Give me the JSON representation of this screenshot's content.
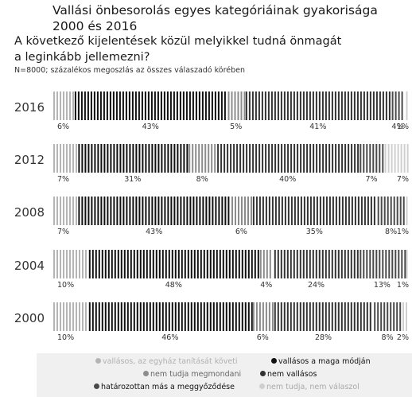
{
  "header": {
    "title_line1": "Vallási önbesorolás egyes kategóriáinak gyakorisága",
    "title_line2": "2000 és 2016",
    "question_line1": "A következő kijelentések közül melyikkel tudná önmagát",
    "question_line2": "a leginkább jellemezni?",
    "note": "N=8000; százalékos megoszlás az összes válaszadó körében"
  },
  "chart_data": {
    "type": "bar",
    "stacked": true,
    "orientation": "horizontal",
    "unit": "%",
    "categories": [
      "2016",
      "2012",
      "2008",
      "2004",
      "2000"
    ],
    "series": [
      {
        "name": "vallásos, az egyház tanítását követi",
        "values": [
          6,
          7,
          7,
          10,
          10
        ],
        "labels": [
          "6%",
          "7%",
          "7%",
          "10%",
          "10%"
        ],
        "color": "#b5b5b5"
      },
      {
        "name": "vallásos a maga módján",
        "values": [
          43,
          31,
          43,
          48,
          46
        ],
        "labels": [
          "43%",
          "31%",
          "43%",
          "48%",
          "46%"
        ],
        "color": "#111111"
      },
      {
        "name": "nem tudja megmondani",
        "values": [
          5,
          8,
          6,
          4,
          6
        ],
        "labels": [
          "5%",
          "8%",
          "6%",
          "4%",
          "6%"
        ],
        "color": "#8c8c8c"
      },
      {
        "name": "nem vallásos",
        "values": [
          41,
          40,
          35,
          24,
          28
        ],
        "labels": [
          "41%",
          "40%",
          "35%",
          "24%",
          "28%"
        ],
        "color": "#333333"
      },
      {
        "name": "határozottan más a meggyőződése",
        "values": [
          4,
          7,
          8,
          13,
          8
        ],
        "labels": [
          "4%",
          "7%",
          "8%",
          "13%",
          "8%"
        ],
        "color": "#4a4a4a"
      },
      {
        "name": "nem tudja, nem válaszol",
        "values": [
          1,
          7,
          1,
          1,
          2
        ],
        "labels": [
          "1%",
          "7%",
          "1%",
          "1%",
          "2%"
        ],
        "color": "#cfcfcf"
      }
    ],
    "legend": {
      "position": "bottom",
      "items": [
        {
          "label": "vallásos, az egyház tanítását követi",
          "color": "#b5b5b5"
        },
        {
          "label": "vallásos a maga módján",
          "color": "#111111"
        },
        {
          "label": "nem tudja megmondani",
          "color": "#8c8c8c"
        },
        {
          "label": "nem vallásos",
          "color": "#333333"
        },
        {
          "label": "határozottan más a meggyőződése",
          "color": "#4a4a4a"
        },
        {
          "label": "nem tudja, nem válaszol",
          "color": "#cfcfcf"
        }
      ]
    }
  }
}
